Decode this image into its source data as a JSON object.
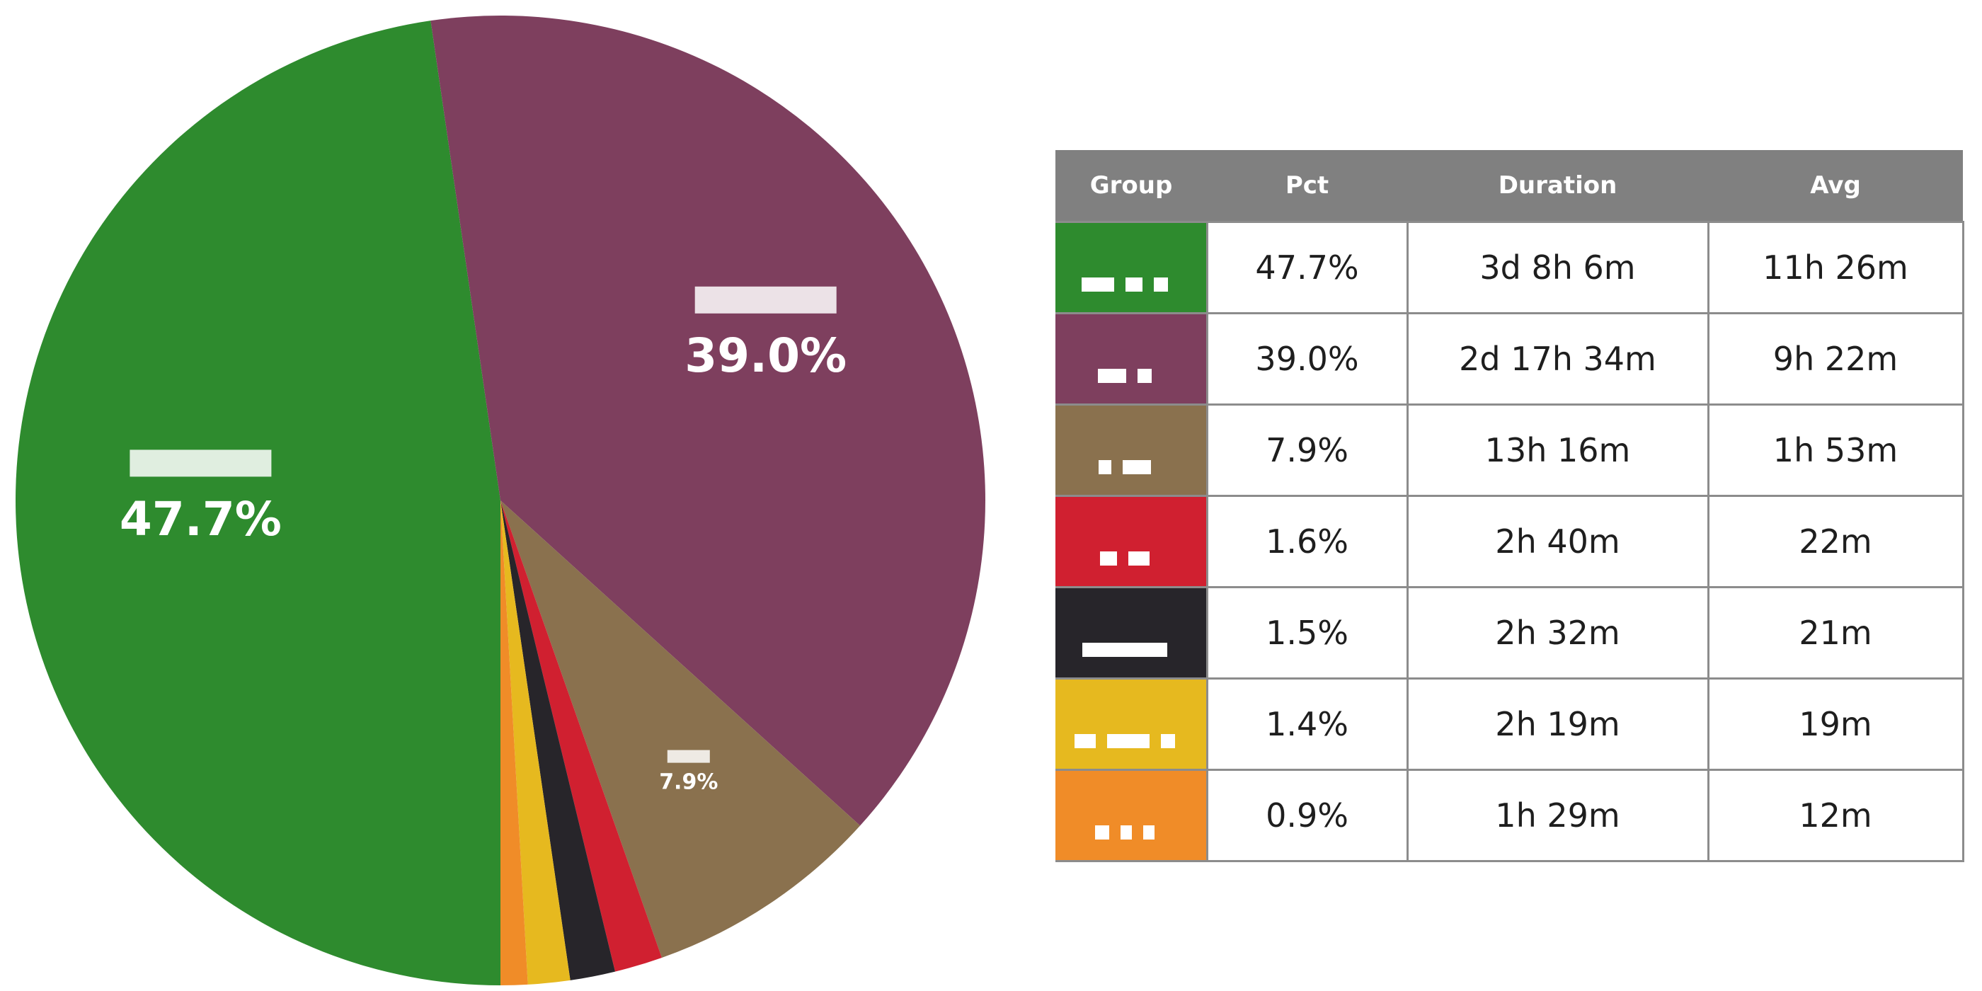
{
  "chart_data": {
    "type": "pie",
    "slices": [
      {
        "label": "47.7%",
        "value": 47.7,
        "color": "#2e8b2e"
      },
      {
        "label": "39.0%",
        "value": 39.0,
        "color": "#7e3f5e"
      },
      {
        "label": "7.9%",
        "value": 7.9,
        "color": "#8a714e"
      },
      {
        "label": "",
        "value": 1.6,
        "color": "#d02030"
      },
      {
        "label": "",
        "value": 1.5,
        "color": "#27252a"
      },
      {
        "label": "",
        "value": 1.4,
        "color": "#e6b91f"
      },
      {
        "label": "",
        "value": 0.9,
        "color": "#f08c28"
      }
    ],
    "start_at": "bottom",
    "direction": "clockwise"
  },
  "table": {
    "columns": [
      "Group",
      "Pct",
      "Duration",
      "Avg"
    ],
    "rows": [
      {
        "pct": "47.7%",
        "duration": "3d 8h 6m",
        "avg": "11h 26m",
        "color": "#2e8b2e"
      },
      {
        "pct": "39.0%",
        "duration": "2d 17h 34m",
        "avg": "9h 22m",
        "color": "#7e3f5e"
      },
      {
        "pct": "7.9%",
        "duration": "13h 16m",
        "avg": "1h 53m",
        "color": "#8a714e"
      },
      {
        "pct": "1.6%",
        "duration": "2h 40m",
        "avg": "22m",
        "color": "#d02030"
      },
      {
        "pct": "1.5%",
        "duration": "2h 32m",
        "avg": "21m",
        "color": "#27252a"
      },
      {
        "pct": "1.4%",
        "duration": "2h 19m",
        "avg": "19m",
        "color": "#e6b91f"
      },
      {
        "pct": "0.9%",
        "duration": "1h 29m",
        "avg": "12m",
        "color": "#f08c28"
      }
    ]
  }
}
